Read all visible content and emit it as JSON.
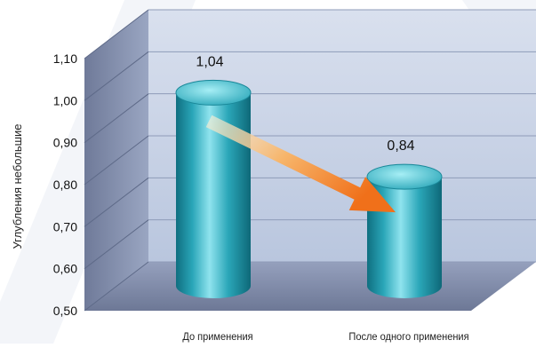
{
  "chart_data": {
    "type": "bar",
    "title": "",
    "ylabel": "Углубления небольшие",
    "xlabel": "",
    "ylim": [
      0.5,
      1.1
    ],
    "y_ticks": [
      "0,50",
      "0,60",
      "0,70",
      "0,80",
      "0,90",
      "1,00",
      "1,10"
    ],
    "categories": [
      "До применения",
      "После одного применения"
    ],
    "values": [
      1.04,
      0.84
    ],
    "value_labels": [
      "1,04",
      "0,84"
    ],
    "style": "3d-cylinder",
    "grid": true,
    "annotation": "arrow-down-from-first-to-second",
    "colors": {
      "bar": "#2aa6b8",
      "bar_dark": "#0f6f80",
      "bar_light": "#8fe3ee",
      "wall": "#c9d3e6",
      "floor": "#7d88a8",
      "arrow_start": "#fbe7c2",
      "arrow_end": "#f0781c"
    }
  }
}
